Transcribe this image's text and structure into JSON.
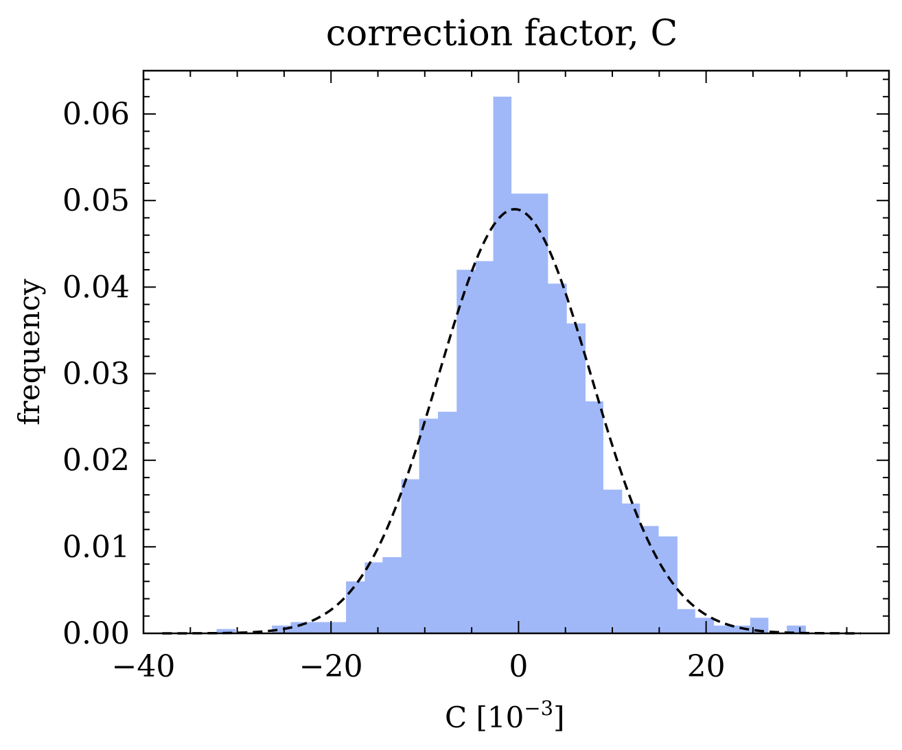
{
  "chart_data": {
    "type": "bar",
    "subtype": "histogram-with-normal-fit",
    "title": "correction factor, C",
    "xlabel": "C [10",
    "xlabel_exponent": "−3",
    "xlabel_suffix": "]",
    "ylabel": "frequency",
    "xlim": [
      -40.0,
      39.5
    ],
    "ylim": [
      0.0,
      0.065
    ],
    "x_ticks": [
      {
        "value": -40,
        "label": "−40"
      },
      {
        "value": -20,
        "label": "−20"
      },
      {
        "value": 0,
        "label": "0"
      },
      {
        "value": 20,
        "label": "20"
      }
    ],
    "y_ticks": [
      {
        "value": 0.0,
        "label": "0.00"
      },
      {
        "value": 0.01,
        "label": "0.01"
      },
      {
        "value": 0.02,
        "label": "0.02"
      },
      {
        "value": 0.03,
        "label": "0.03"
      },
      {
        "value": 0.04,
        "label": "0.04"
      },
      {
        "value": 0.05,
        "label": "0.05"
      },
      {
        "value": 0.06,
        "label": "0.06"
      }
    ],
    "bar_color": "#a0b8f8",
    "fit_color": "#000000",
    "bins": [
      {
        "x0": -32.2,
        "x1": -30.2,
        "value": 0.0005
      },
      {
        "x0": -26.3,
        "x1": -24.3,
        "value": 0.0009
      },
      {
        "x0": -24.3,
        "x1": -22.3,
        "value": 0.0013
      },
      {
        "x0": -22.3,
        "x1": -20.4,
        "value": 0.0013
      },
      {
        "x0": -20.4,
        "x1": -18.4,
        "value": 0.0013
      },
      {
        "x0": -18.4,
        "x1": -16.4,
        "value": 0.006
      },
      {
        "x0": -16.4,
        "x1": -14.5,
        "value": 0.0082
      },
      {
        "x0": -14.5,
        "x1": -12.5,
        "value": 0.0088
      },
      {
        "x0": -12.5,
        "x1": -10.6,
        "value": 0.0178
      },
      {
        "x0": -10.6,
        "x1": -8.6,
        "value": 0.0248
      },
      {
        "x0": -8.6,
        "x1": -6.6,
        "value": 0.0256
      },
      {
        "x0": -6.6,
        "x1": -4.6,
        "value": 0.042
      },
      {
        "x0": -4.6,
        "x1": -2.7,
        "value": 0.043
      },
      {
        "x0": -2.7,
        "x1": -0.8,
        "value": 0.062
      },
      {
        "x0": -0.8,
        "x1": 1.2,
        "value": 0.0508
      },
      {
        "x0": 1.2,
        "x1": 3.1,
        "value": 0.0508
      },
      {
        "x0": 3.1,
        "x1": 5.1,
        "value": 0.0404
      },
      {
        "x0": 5.1,
        "x1": 7.1,
        "value": 0.0358
      },
      {
        "x0": 7.1,
        "x1": 9.0,
        "value": 0.0268
      },
      {
        "x0": 9.0,
        "x1": 11.0,
        "value": 0.0166
      },
      {
        "x0": 11.0,
        "x1": 12.9,
        "value": 0.015
      },
      {
        "x0": 12.9,
        "x1": 14.9,
        "value": 0.0124
      },
      {
        "x0": 14.9,
        "x1": 16.9,
        "value": 0.0112
      },
      {
        "x0": 16.9,
        "x1": 18.8,
        "value": 0.0028
      },
      {
        "x0": 18.8,
        "x1": 20.8,
        "value": 0.0018
      },
      {
        "x0": 20.8,
        "x1": 22.7,
        "value": 0.0009
      },
      {
        "x0": 22.7,
        "x1": 24.7,
        "value": 0.0009
      },
      {
        "x0": 24.7,
        "x1": 26.6,
        "value": 0.0018
      },
      {
        "x0": 28.6,
        "x1": 30.6,
        "value": 0.0009
      }
    ],
    "fit": {
      "distribution": "normal",
      "mean": -0.4,
      "sigma": 8.15,
      "peak": 0.049,
      "x_range": [
        -38.0,
        36.5
      ],
      "linestyle": "dashed"
    }
  }
}
